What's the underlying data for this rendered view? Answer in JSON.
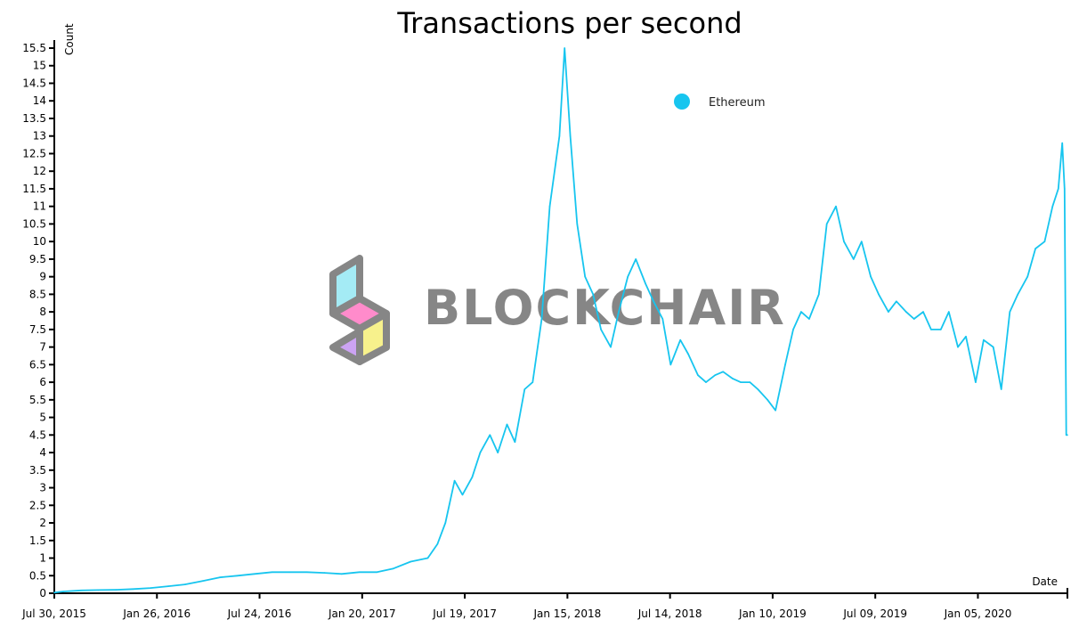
{
  "chart_data": {
    "type": "line",
    "title": "Transactions per second",
    "xlabel": "Date",
    "ylabel": "Count",
    "ylim": [
      0,
      15.5
    ],
    "xlim": [
      "2015-07-30",
      "2020-06-10"
    ],
    "y_ticks": [
      "0",
      "0.5",
      "1",
      "1.5",
      "2",
      "2.5",
      "3",
      "3.5",
      "4",
      "4.5",
      "5",
      "5.5",
      "6",
      "6.5",
      "7",
      "7.5",
      "8",
      "8.5",
      "9",
      "9.5",
      "10",
      "10.5",
      "11",
      "11.5",
      "12",
      "12.5",
      "13",
      "13.5",
      "14",
      "14.5",
      "15",
      "15.5"
    ],
    "x_ticks": [
      {
        "date": "2015-07-30",
        "label": "Jul 30, 2015"
      },
      {
        "date": "2016-01-26",
        "label": "Jan 26, 2016"
      },
      {
        "date": "2016-07-24",
        "label": "Jul 24, 2016"
      },
      {
        "date": "2017-01-20",
        "label": "Jan 20, 2017"
      },
      {
        "date": "2017-07-19",
        "label": "Jul 19, 2017"
      },
      {
        "date": "2018-01-15",
        "label": "Jan 15, 2018"
      },
      {
        "date": "2018-07-14",
        "label": "Jul 14, 2018"
      },
      {
        "date": "2019-01-10",
        "label": "Jan 10, 2019"
      },
      {
        "date": "2019-07-09",
        "label": "Jul 09, 2019"
      },
      {
        "date": "2020-01-05",
        "label": "Jan 05, 2020"
      }
    ],
    "grid": false,
    "legend_position": "top-right",
    "series": [
      {
        "name": "Ethereum",
        "color": "#17c5ef",
        "x": [
          "2015-07-30",
          "2015-08-15",
          "2015-09-15",
          "2015-10-15",
          "2015-11-15",
          "2015-12-15",
          "2016-01-15",
          "2016-02-15",
          "2016-03-15",
          "2016-04-15",
          "2016-05-15",
          "2016-06-15",
          "2016-07-15",
          "2016-08-15",
          "2016-09-15",
          "2016-10-15",
          "2016-11-15",
          "2016-12-15",
          "2017-01-15",
          "2017-02-15",
          "2017-03-15",
          "2017-04-15",
          "2017-05-15",
          "2017-06-01",
          "2017-06-15",
          "2017-07-01",
          "2017-07-15",
          "2017-08-01",
          "2017-08-15",
          "2017-09-01",
          "2017-09-15",
          "2017-10-01",
          "2017-10-15",
          "2017-11-01",
          "2017-11-15",
          "2017-12-01",
          "2017-12-15",
          "2018-01-01",
          "2018-01-10",
          "2018-01-20",
          "2018-02-01",
          "2018-02-15",
          "2018-03-01",
          "2018-03-15",
          "2018-04-01",
          "2018-04-15",
          "2018-05-01",
          "2018-05-15",
          "2018-06-01",
          "2018-06-15",
          "2018-07-01",
          "2018-07-15",
          "2018-08-01",
          "2018-08-15",
          "2018-09-01",
          "2018-09-15",
          "2018-10-01",
          "2018-10-15",
          "2018-11-01",
          "2018-11-15",
          "2018-12-01",
          "2018-12-15",
          "2019-01-01",
          "2019-01-15",
          "2019-02-01",
          "2019-02-15",
          "2019-03-01",
          "2019-03-15",
          "2019-04-01",
          "2019-04-15",
          "2019-05-01",
          "2019-05-15",
          "2019-06-01",
          "2019-06-15",
          "2019-07-01",
          "2019-07-15",
          "2019-08-01",
          "2019-08-15",
          "2019-09-01",
          "2019-09-15",
          "2019-10-01",
          "2019-10-15",
          "2019-11-01",
          "2019-11-15",
          "2019-12-01",
          "2019-12-15",
          "2020-01-01",
          "2020-01-15",
          "2020-02-01",
          "2020-02-15",
          "2020-03-01",
          "2020-03-15",
          "2020-04-01",
          "2020-04-15",
          "2020-05-01",
          "2020-05-15",
          "2020-05-25",
          "2020-06-01",
          "2020-06-05",
          "2020-06-08",
          "2020-06-10"
        ],
        "values": [
          0.02,
          0.05,
          0.08,
          0.09,
          0.1,
          0.12,
          0.15,
          0.2,
          0.25,
          0.35,
          0.45,
          0.5,
          0.55,
          0.6,
          0.6,
          0.6,
          0.58,
          0.55,
          0.6,
          0.6,
          0.7,
          0.9,
          1.0,
          1.4,
          2.0,
          3.2,
          2.8,
          3.3,
          4.0,
          4.5,
          4.0,
          4.8,
          4.3,
          5.8,
          6.0,
          7.8,
          11.0,
          13.0,
          15.5,
          13.0,
          10.5,
          9.0,
          8.5,
          7.5,
          7.0,
          8.0,
          9.0,
          9.5,
          8.8,
          8.3,
          7.8,
          6.5,
          7.2,
          6.8,
          6.2,
          6.0,
          6.2,
          6.3,
          6.1,
          6.0,
          6.0,
          5.8,
          5.5,
          5.2,
          6.5,
          7.5,
          8.0,
          7.8,
          8.5,
          10.5,
          11.0,
          10.0,
          9.5,
          10.0,
          9.0,
          8.5,
          8.0,
          8.3,
          8.0,
          7.8,
          8.0,
          7.5,
          7.5,
          8.0,
          7.0,
          7.3,
          6.0,
          7.2,
          7.0,
          5.8,
          8.0,
          8.5,
          9.0,
          9.8,
          10.0,
          11.0,
          11.5,
          12.8,
          11.5,
          4.5,
          4.5
        ]
      }
    ]
  },
  "watermark": {
    "text": "BLOCKCHAIR",
    "color": "#7a7a7a"
  }
}
